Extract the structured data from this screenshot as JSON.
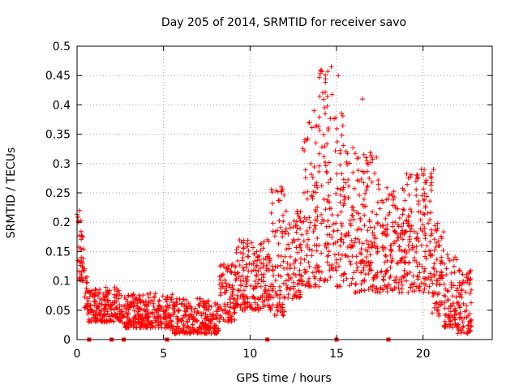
{
  "chart_data": {
    "type": "scatter",
    "title": "Day 205 of 2014, SRMTID for receiver savo",
    "xlabel": "GPS time / hours",
    "ylabel": "SRMTID / TECUs",
    "xlim": [
      0,
      24
    ],
    "ylim": [
      0,
      0.5
    ],
    "grid": true,
    "marker": "+",
    "x_ticks": [
      0,
      5,
      10,
      15,
      20
    ],
    "x_tick_labels": [
      "0",
      "5",
      "10",
      "15",
      "20"
    ],
    "y_ticks": [
      0,
      0.05,
      0.1,
      0.15,
      0.2,
      0.25,
      0.3,
      0.35,
      0.4,
      0.45,
      0.5
    ],
    "y_tick_labels": [
      "0",
      "0.05",
      "0.1",
      "0.15",
      "0.2",
      "0.25",
      "0.3",
      "0.35",
      "0.4",
      "0.45",
      "0.5"
    ],
    "series": [
      {
        "name": "SRMTID",
        "color": "#ff0000",
        "envelope_note": "typical value ranges per time window, read from the plot",
        "segments": [
          {
            "x": [
              0.0,
              0.4
            ],
            "y": [
              0.1,
              0.22
            ]
          },
          {
            "x": [
              0.4,
              0.6
            ],
            "y": [
              0.05,
              0.13
            ]
          },
          {
            "x": [
              0.6,
              2.5
            ],
            "y": [
              0.03,
              0.09
            ]
          },
          {
            "x": [
              2.5,
              5.5
            ],
            "y": [
              0.02,
              0.08
            ]
          },
          {
            "x": [
              5.5,
              8.2
            ],
            "y": [
              0.01,
              0.07
            ]
          },
          {
            "x": [
              8.2,
              9.2
            ],
            "y": [
              0.03,
              0.13
            ]
          },
          {
            "x": [
              9.2,
              11.2
            ],
            "y": [
              0.05,
              0.17
            ]
          },
          {
            "x": [
              11.2,
              12.0
            ],
            "y": [
              0.04,
              0.26
            ]
          },
          {
            "x": [
              12.0,
              13.0
            ],
            "y": [
              0.07,
              0.22
            ]
          },
          {
            "x": [
              13.0,
              14.0
            ],
            "y": [
              0.09,
              0.38
            ]
          },
          {
            "x": [
              14.0,
              15.0
            ],
            "y": [
              0.1,
              0.46
            ]
          },
          {
            "x": [
              15.0,
              16.0
            ],
            "y": [
              0.09,
              0.4
            ]
          },
          {
            "x": [
              16.0,
              17.5
            ],
            "y": [
              0.08,
              0.32
            ]
          },
          {
            "x": [
              17.5,
              19.0
            ],
            "y": [
              0.08,
              0.26
            ]
          },
          {
            "x": [
              19.0,
              20.5
            ],
            "y": [
              0.08,
              0.29
            ]
          },
          {
            "x": [
              20.5,
              21.2
            ],
            "y": [
              0.04,
              0.2
            ]
          },
          {
            "x": [
              21.2,
              22.0
            ],
            "y": [
              0.02,
              0.15
            ]
          },
          {
            "x": [
              22.0,
              22.8
            ],
            "y": [
              0.01,
              0.12
            ]
          }
        ],
        "peak_points": [
          {
            "x": 0.15,
            "y": 0.22
          },
          {
            "x": 11.0,
            "y": 0.17
          },
          {
            "x": 11.8,
            "y": 0.26
          },
          {
            "x": 13.7,
            "y": 0.39
          },
          {
            "x": 14.7,
            "y": 0.465
          },
          {
            "x": 15.1,
            "y": 0.45
          },
          {
            "x": 16.5,
            "y": 0.41
          },
          {
            "x": 19.9,
            "y": 0.29
          },
          {
            "x": 20.6,
            "y": 0.29
          }
        ]
      },
      {
        "name": "data gap markers",
        "color": "#ff0000",
        "x": [
          0.7,
          2.0,
          2.7,
          5.2,
          11.0,
          15.0,
          18.0
        ],
        "y": [
          0,
          0,
          0,
          0,
          0,
          0,
          0
        ]
      }
    ]
  }
}
